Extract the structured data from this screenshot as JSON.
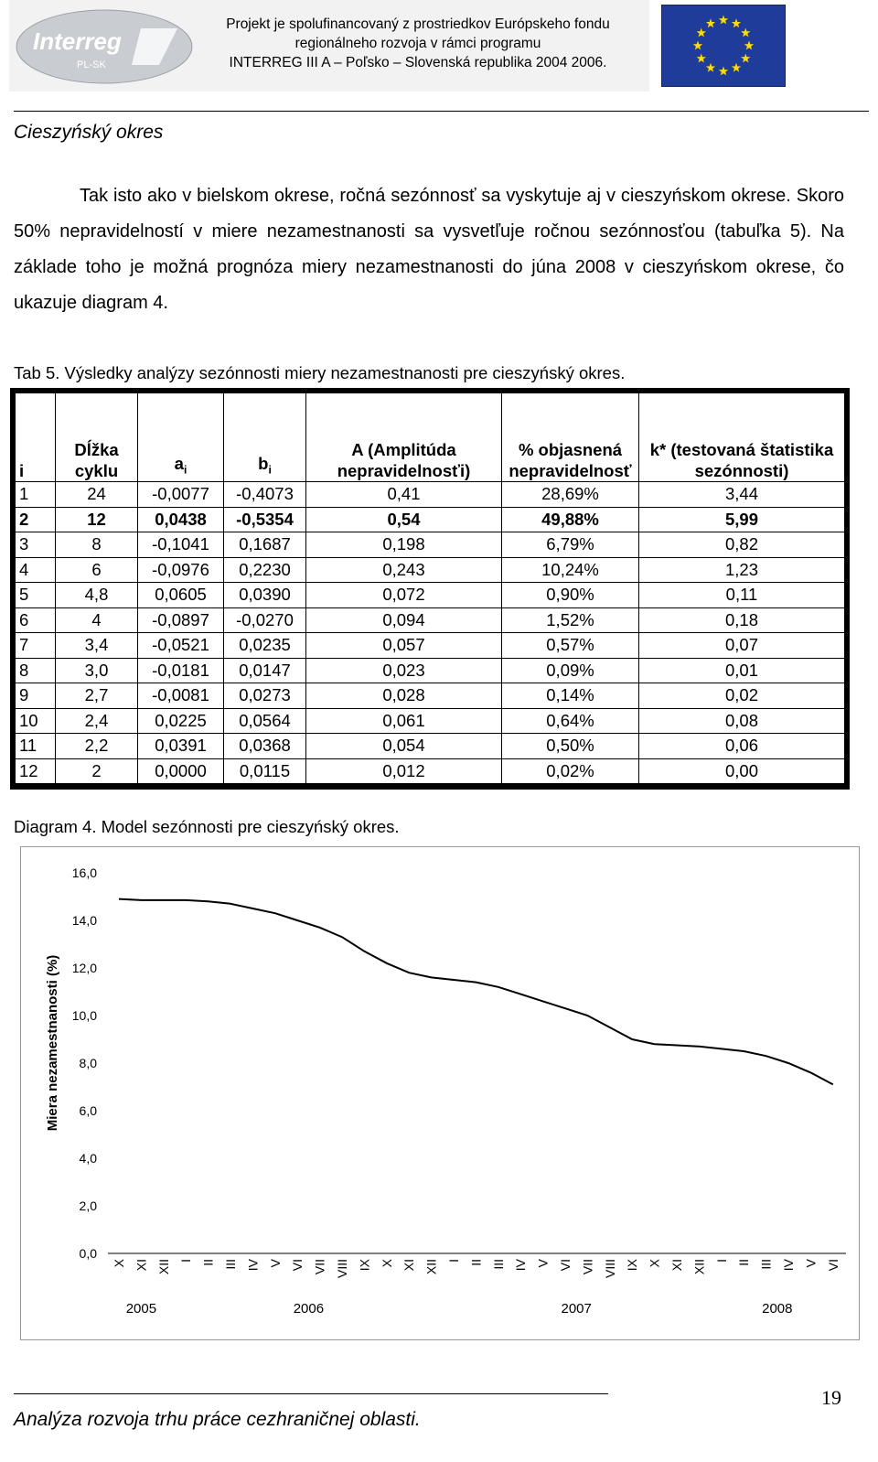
{
  "header": {
    "logo": "Interreg",
    "logo_sub": "PL-SK",
    "lines": [
      "Projekt je spolufinancovaný z prostriedkov Európskeho fondu",
      "regionálneho rozvoja v rámci programu",
      "INTERREG III A – Poľsko – Slovenská republika 2004 2006."
    ]
  },
  "section_title": "Cieszyńský okres",
  "paragraph": "Tak isto ako v bielskom okrese, ročná sezónnosť sa vyskytuje aj v cieszyńskom okrese. Skoro 50% nepravidelností v miere nezamestnanosti sa vysvetľuje ročnou sezónnosťou (tabuľka 5). Na základe toho je možná prognóza miery nezamestnanosti do júna 2008 v cieszyńskom okrese, čo ukazuje diagram 4.",
  "table_caption": "Tab 5. Výsledky analýzy sezónnosti miery nezamestnanosti pre cieszyńský okres.",
  "table": {
    "headers": [
      {
        "text": "i"
      },
      {
        "text": "Dĺžka cyklu"
      },
      {
        "text": "a",
        "sub": "i"
      },
      {
        "text": "b",
        "sub": "i"
      },
      {
        "text": "A (Amplitúda nepravidelnosťi)"
      },
      {
        "text": "% objasnená nepravidelnosť"
      },
      {
        "text": "k* (testovaná štatistika sezónnosti)"
      }
    ],
    "rows": [
      [
        "1",
        "24",
        "-0,0077",
        "-0,4073",
        "0,41",
        "28,69%",
        "3,44"
      ],
      [
        "2",
        "12",
        "0,0438",
        "-0,5354",
        "0,54",
        "49,88%",
        "5,99"
      ],
      [
        "3",
        "8",
        "-0,1041",
        "0,1687",
        "0,198",
        "6,79%",
        "0,82"
      ],
      [
        "4",
        "6",
        "-0,0976",
        "0,2230",
        "0,243",
        "10,24%",
        "1,23"
      ],
      [
        "5",
        "4,8",
        "0,0605",
        "0,0390",
        "0,072",
        "0,90%",
        "0,11"
      ],
      [
        "6",
        "4",
        "-0,0897",
        "-0,0270",
        "0,094",
        "1,52%",
        "0,18"
      ],
      [
        "7",
        "3,4",
        "-0,0521",
        "0,0235",
        "0,057",
        "0,57%",
        "0,07"
      ],
      [
        "8",
        "3,0",
        "-0,0181",
        "0,0147",
        "0,023",
        "0,09%",
        "0,01"
      ],
      [
        "9",
        "2,7",
        "-0,0081",
        "0,0273",
        "0,028",
        "0,14%",
        "0,02"
      ],
      [
        "10",
        "2,4",
        "0,0225",
        "0,0564",
        "0,061",
        "0,64%",
        "0,08"
      ],
      [
        "11",
        "2,2",
        "0,0391",
        "0,0368",
        "0,054",
        "0,50%",
        "0,06"
      ],
      [
        "12",
        "2",
        "0,0000",
        "0,0115",
        "0,012",
        "0,02%",
        "0,00"
      ]
    ],
    "bold_row": 1
  },
  "diagram_caption": "Diagram 4. Model sezónnosti pre cieszyńský okres.",
  "chart_data": {
    "type": "line",
    "y_label": "Miera nezamestnanosti  (%)",
    "categories": [
      "X",
      "XI",
      "XII",
      "I",
      "II",
      "III",
      "IV",
      "V",
      "VI",
      "VII",
      "VIII",
      "IX",
      "X",
      "XI",
      "XII",
      "I",
      "II",
      "III",
      "IV",
      "V",
      "VI",
      "VII",
      "VIII",
      "IX",
      "X",
      "XI",
      "XII",
      "I",
      "II",
      "III",
      "IV",
      "V",
      "VI"
    ],
    "years": [
      "2005",
      "2006",
      "2007",
      "2008"
    ],
    "series": [
      {
        "name": "Miera nezamestnanosti",
        "color": "#000000",
        "values": [
          14.9,
          14.85,
          14.85,
          14.85,
          14.8,
          14.7,
          14.5,
          14.3,
          14.0,
          13.7,
          13.3,
          12.7,
          12.2,
          11.8,
          11.6,
          11.5,
          11.4,
          11.2,
          10.9,
          10.6,
          10.3,
          10.0,
          9.5,
          9.0,
          8.8,
          8.75,
          8.7,
          8.6,
          8.5,
          8.3,
          8.0,
          7.6,
          7.1
        ]
      }
    ],
    "ylim": [
      0,
      16
    ],
    "yticks": [
      {
        "value": 0,
        "label": "0,0"
      },
      {
        "value": 2,
        "label": "2,0"
      },
      {
        "value": 4,
        "label": "4,0"
      },
      {
        "value": 6,
        "label": "6,0"
      },
      {
        "value": 8,
        "label": "8,0"
      },
      {
        "value": 10,
        "label": "10,0"
      },
      {
        "value": 12,
        "label": "12,0"
      },
      {
        "value": 14,
        "label": "14,0"
      },
      {
        "value": 16,
        "label": "16,0"
      }
    ],
    "grid": false
  },
  "footer": {
    "text": "Analýza rozvoja trhu práce cezhraničnej oblasti.",
    "page": "19"
  }
}
